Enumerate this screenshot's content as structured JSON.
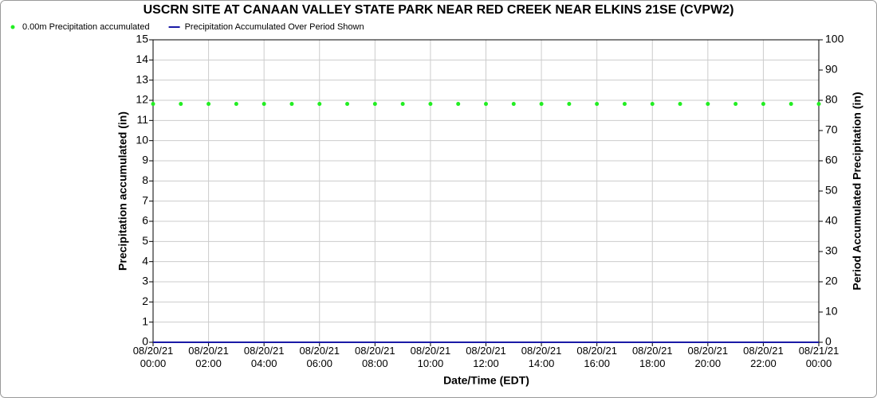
{
  "chart_data": {
    "type": "scatter",
    "title": "USCRN SITE AT CANAAN VALLEY STATE PARK NEAR RED CREEK NEAR ELKINS 21SE (CVPW2)",
    "xlabel": "Date/Time (EDT)",
    "ylabel": "Precipitation accumulated (in)",
    "y2label": "Period Accumulated Precipitation (in)",
    "x": [
      "08/20/21 00:00",
      "08/20/21 01:00",
      "08/20/21 02:00",
      "08/20/21 03:00",
      "08/20/21 04:00",
      "08/20/21 05:00",
      "08/20/21 06:00",
      "08/20/21 07:00",
      "08/20/21 08:00",
      "08/20/21 09:00",
      "08/20/21 10:00",
      "08/20/21 11:00",
      "08/20/21 12:00",
      "08/20/21 13:00",
      "08/20/21 14:00",
      "08/20/21 15:00",
      "08/20/21 16:00",
      "08/20/21 17:00",
      "08/20/21 18:00",
      "08/20/21 19:00",
      "08/20/21 20:00",
      "08/20/21 21:00",
      "08/20/21 22:00",
      "08/20/21 23:00",
      "08/21/21 00:00"
    ],
    "series": [
      {
        "name": "0.00m Precipitation accumulated",
        "color": "#22ee22",
        "style": "points",
        "values": [
          11.82,
          11.82,
          11.82,
          11.82,
          11.82,
          11.82,
          11.82,
          11.82,
          11.82,
          11.82,
          11.82,
          11.82,
          11.82,
          11.82,
          11.82,
          11.82,
          11.82,
          11.82,
          11.82,
          11.82,
          11.82,
          11.82,
          11.82,
          11.82,
          11.82
        ]
      },
      {
        "name": "Precipitation Accumulated Over Period Shown",
        "color": "#1a1aa6",
        "style": "line",
        "axis": "y2",
        "values": [
          0,
          0,
          0,
          0,
          0,
          0,
          0,
          0,
          0,
          0,
          0,
          0,
          0,
          0,
          0,
          0,
          0,
          0,
          0,
          0,
          0,
          0,
          0,
          0,
          0
        ]
      }
    ],
    "xlim": [
      "08/20/21 00:00",
      "08/21/21 00:00"
    ],
    "xticks": [
      "08/20/21 00:00",
      "08/20/21 02:00",
      "08/20/21 04:00",
      "08/20/21 06:00",
      "08/20/21 08:00",
      "08/20/21 10:00",
      "08/20/21 12:00",
      "08/20/21 14:00",
      "08/20/21 16:00",
      "08/20/21 18:00",
      "08/20/21 20:00",
      "08/20/21 22:00",
      "08/21/21 00:00"
    ],
    "ylim": [
      0,
      15
    ],
    "yticks": [
      0,
      1,
      2,
      3,
      4,
      5,
      6,
      7,
      8,
      9,
      10,
      11,
      12,
      13,
      14,
      15
    ],
    "y2lim": [
      0,
      100
    ],
    "y2ticks": [
      0,
      10,
      20,
      30,
      40,
      50,
      60,
      70,
      80,
      90,
      100
    ],
    "grid": true,
    "legend": "top-left"
  }
}
